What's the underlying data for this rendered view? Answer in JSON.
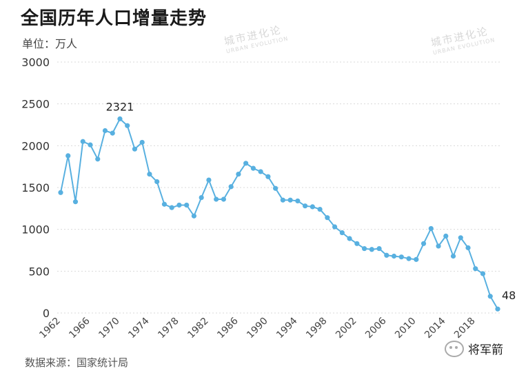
{
  "header": {
    "title": "全国历年人口增量走势",
    "unit": "单位：万人"
  },
  "footer": {
    "source": "数据来源：国家统计局"
  },
  "watermark": {
    "text": "城市进化论",
    "sub": "URBAN EVOLUTION"
  },
  "brand": {
    "label": "将军箭",
    "icon": "wechat-icon"
  },
  "chart_data": {
    "type": "line",
    "title": "全国历年人口增量走势",
    "ylabel": "单位：万人",
    "xlabel": "",
    "ylim": [
      0,
      3000
    ],
    "yticks": [
      0,
      500,
      1000,
      1500,
      2000,
      2500,
      3000
    ],
    "xticks": [
      1962,
      1966,
      1970,
      1974,
      1978,
      1982,
      1986,
      1990,
      1994,
      1998,
      2002,
      2006,
      2010,
      2014,
      2018
    ],
    "grid": true,
    "line_color": "#58b0e0",
    "x": [
      1962,
      1963,
      1964,
      1965,
      1966,
      1967,
      1968,
      1969,
      1970,
      1971,
      1972,
      1973,
      1974,
      1975,
      1976,
      1977,
      1978,
      1979,
      1980,
      1981,
      1982,
      1983,
      1984,
      1985,
      1986,
      1987,
      1988,
      1989,
      1990,
      1991,
      1992,
      1993,
      1994,
      1995,
      1996,
      1997,
      1998,
      1999,
      2000,
      2001,
      2002,
      2003,
      2004,
      2005,
      2006,
      2007,
      2008,
      2009,
      2010,
      2011,
      2012,
      2013,
      2014,
      2015,
      2016,
      2017,
      2018,
      2019,
      2020,
      2021
    ],
    "values": [
      1440,
      1880,
      1330,
      2050,
      2010,
      1840,
      2180,
      2150,
      2321,
      2240,
      1960,
      2040,
      1660,
      1570,
      1300,
      1260,
      1290,
      1290,
      1160,
      1380,
      1590,
      1360,
      1360,
      1510,
      1660,
      1790,
      1730,
      1690,
      1630,
      1490,
      1350,
      1350,
      1340,
      1280,
      1270,
      1240,
      1140,
      1030,
      960,
      890,
      830,
      770,
      760,
      770,
      690,
      680,
      670,
      650,
      640,
      830,
      1010,
      800,
      920,
      680,
      900,
      780,
      530,
      470,
      200,
      48
    ],
    "annotations": [
      {
        "x": 1970,
        "label": "2321"
      },
      {
        "x": 2021,
        "label": "48"
      }
    ]
  }
}
